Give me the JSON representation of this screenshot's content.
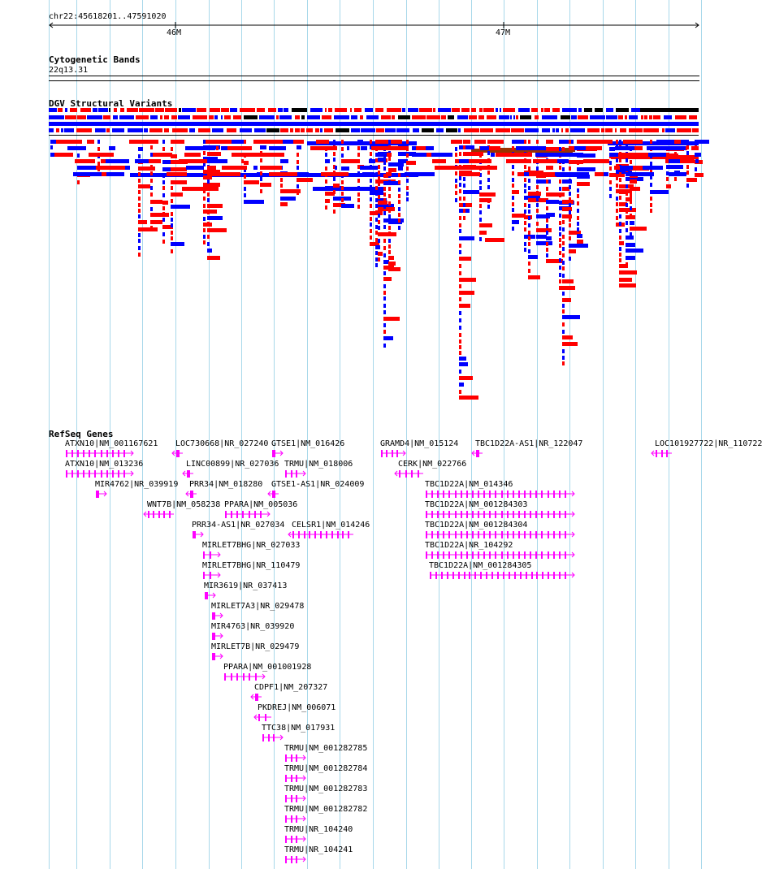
{
  "browser": {
    "locus": "chr22:45618201..47591020",
    "ruler_ticks": [
      "46M",
      "47M"
    ],
    "colors": {
      "gridline": "#a8d8ea",
      "gain": "#0000ff",
      "loss": "#ff0000",
      "complex": "#993300",
      "other": "#000000",
      "gene": "#ff00ff"
    }
  },
  "tracks": {
    "cytoband": {
      "title": "Cytogenetic Bands",
      "band": "22q13.31"
    },
    "dgv": {
      "title": "DGV Structural Variants"
    },
    "refseq": {
      "title": "RefSeq Genes"
    }
  },
  "genes": [
    {
      "name": "ATXN10|NM_001167621",
      "strand": "+"
    },
    {
      "name": "ATXN10|NM_013236",
      "strand": "+"
    },
    {
      "name": "MIR4762|NR_039919",
      "strand": "+"
    },
    {
      "name": "WNT7B|NM_058238",
      "strand": "-"
    },
    {
      "name": "LOC730668|NR_027240",
      "strand": "-"
    },
    {
      "name": "LINC00899|NR_027036",
      "strand": "-"
    },
    {
      "name": "PRR34|NM_018280",
      "strand": "-"
    },
    {
      "name": "PPARA|NM_005036",
      "strand": "+"
    },
    {
      "name": "PRR34-AS1|NR_027034",
      "strand": "+"
    },
    {
      "name": "MIRLET7BHG|NR_027033",
      "strand": "+"
    },
    {
      "name": "MIRLET7BHG|NR_110479",
      "strand": "+"
    },
    {
      "name": "MIR3619|NR_037413",
      "strand": "+"
    },
    {
      "name": "MIRLET7A3|NR_029478",
      "strand": "+"
    },
    {
      "name": "MIR4763|NR_039920",
      "strand": "+"
    },
    {
      "name": "MIRLET7B|NR_029479",
      "strand": "+"
    },
    {
      "name": "PPARA|NM_001001928",
      "strand": "+"
    },
    {
      "name": "CDPF1|NM_207327",
      "strand": "-"
    },
    {
      "name": "PKDREJ|NM_006071",
      "strand": "-"
    },
    {
      "name": "TTC38|NM_017931",
      "strand": "+"
    },
    {
      "name": "GTSE1|NM_016426",
      "strand": "+"
    },
    {
      "name": "TRMU|NM_018006",
      "strand": "+"
    },
    {
      "name": "GTSE1-AS1|NR_024009",
      "strand": "-"
    },
    {
      "name": "CELSR1|NM_014246",
      "strand": "-"
    },
    {
      "name": "TRMU|NM_001282785",
      "strand": "+"
    },
    {
      "name": "TRMU|NM_001282784",
      "strand": "+"
    },
    {
      "name": "TRMU|NM_001282783",
      "strand": "+"
    },
    {
      "name": "TRMU|NM_001282782",
      "strand": "+"
    },
    {
      "name": "TRMU|NR_104240",
      "strand": "+"
    },
    {
      "name": "TRMU|NR_104241",
      "strand": "+"
    },
    {
      "name": "GRAMD4|NM_015124",
      "strand": "+"
    },
    {
      "name": "CERK|NM_022766",
      "strand": "-"
    },
    {
      "name": "TBC1D22A-AS1|NR_122047",
      "strand": "-"
    },
    {
      "name": "TBC1D22A|NM_014346",
      "strand": "+"
    },
    {
      "name": "TBC1D22A|NM_001284303",
      "strand": "+"
    },
    {
      "name": "TBC1D22A|NM_001284304",
      "strand": "+"
    },
    {
      "name": "TBC1D22A|NR_104292",
      "strand": "+"
    },
    {
      "name": "TBC1D22A|NM_001284305",
      "strand": "+"
    },
    {
      "name": "LOC101927722|NR_110722",
      "strand": "-"
    }
  ]
}
